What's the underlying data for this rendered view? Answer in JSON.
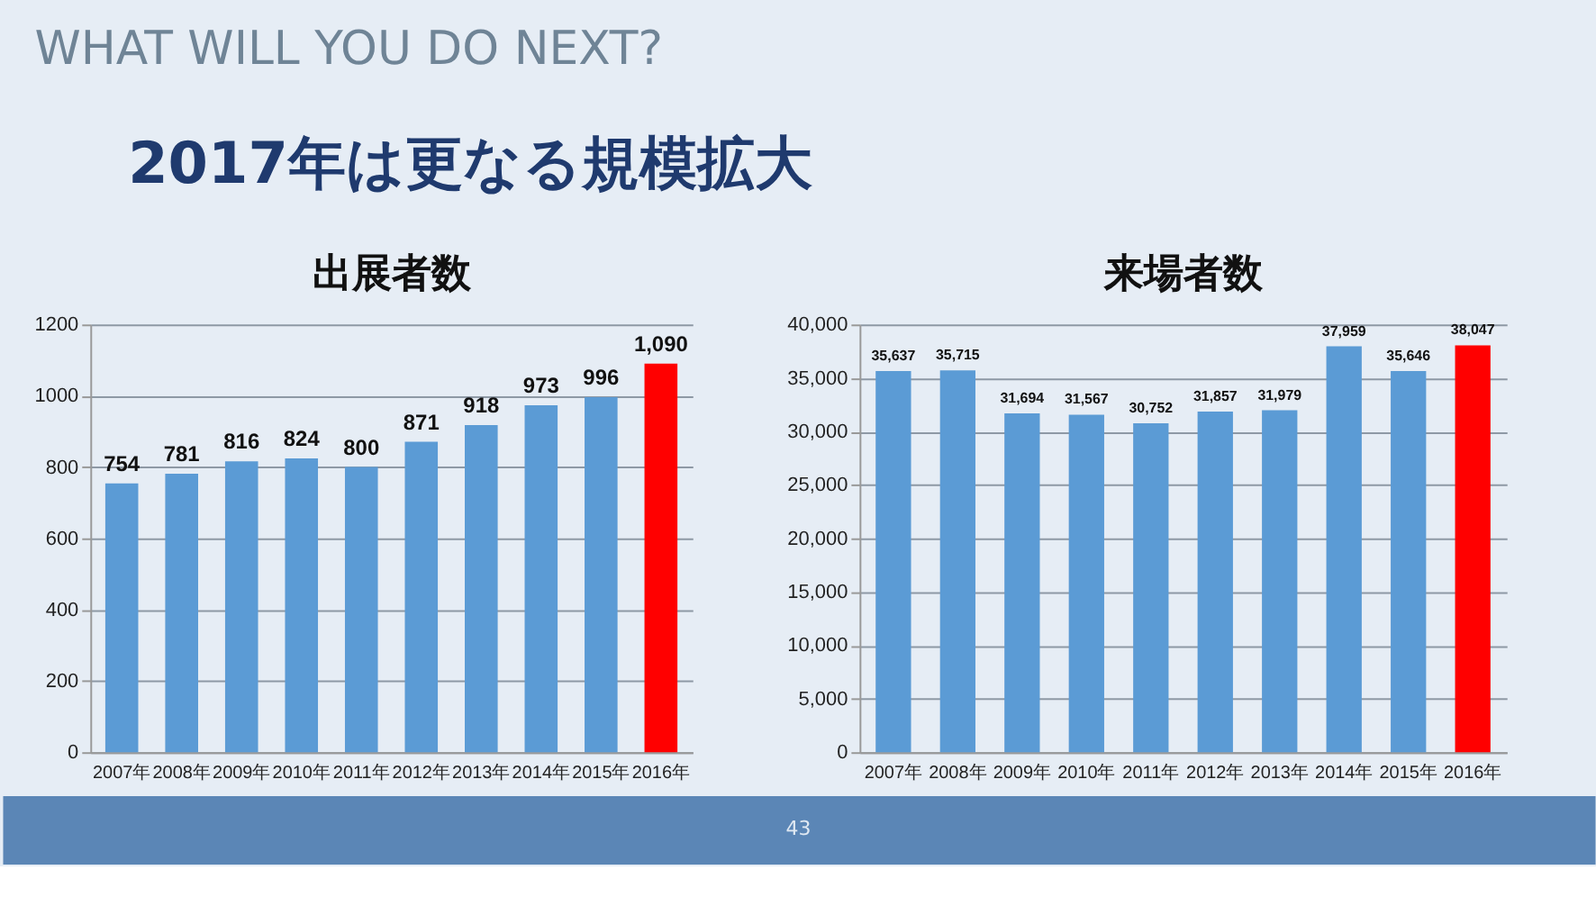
{
  "chart_data": [
    {
      "type": "other",
      "title": "2017年は更なる規模拡大",
      "annotations": [
        "WHAT WILL YOU DO NEXT?",
        "43"
      ]
    },
    {
      "type": "bar",
      "title": "出展者数",
      "categories": [
        "2007年",
        "2008年",
        "2009年",
        "2010年",
        "2011年",
        "2012年",
        "2013年",
        "2014年",
        "2015年",
        "2016年"
      ],
      "values": [
        754,
        781,
        816,
        824,
        800,
        871,
        918,
        973,
        996,
        1090
      ],
      "colors": [
        "#5b9bd5",
        "#5b9bd5",
        "#5b9bd5",
        "#5b9bd5",
        "#5b9bd5",
        "#5b9bd5",
        "#5b9bd5",
        "#5b9bd5",
        "#5b9bd5",
        "#ff0000"
      ],
      "value_labels": [
        "754",
        "781",
        "816",
        "824",
        "800",
        "871",
        "918",
        "973",
        "996",
        "1,090"
      ],
      "ylim": [
        0,
        1200
      ],
      "yticks": [
        0,
        200,
        400,
        600,
        800,
        1000,
        1200
      ],
      "grid": "y"
    },
    {
      "type": "bar",
      "title": "来場者数",
      "categories": [
        "2007年",
        "2008年",
        "2009年",
        "2010年",
        "2011年",
        "2012年",
        "2013年",
        "2014年",
        "2015年",
        "2016年"
      ],
      "values": [
        35637,
        35715,
        31694,
        31567,
        30752,
        31857,
        31979,
        37959,
        35646,
        38047
      ],
      "colors": [
        "#5b9bd5",
        "#5b9bd5",
        "#5b9bd5",
        "#5b9bd5",
        "#5b9bd5",
        "#5b9bd5",
        "#5b9bd5",
        "#5b9bd5",
        "#5b9bd5",
        "#ff0000"
      ],
      "value_labels": [
        "35,637",
        "35,715",
        "31,694",
        "31,567",
        "30,752",
        "31,857",
        "31,979",
        "37,959",
        "35,646",
        "38,047"
      ],
      "ylim": [
        0,
        40000
      ],
      "yticks": [
        0,
        {
          "value": 5000,
          "label": "5,000"
        },
        {
          "value": 10000,
          "label": "10,000"
        },
        {
          "value": 15000,
          "label": "15,000"
        },
        {
          "value": 20000,
          "label": "20,000"
        },
        {
          "value": 25000,
          "label": "25,000"
        },
        {
          "value": 30000,
          "label": "30,000"
        },
        {
          "value": 35000,
          "label": "35,000"
        },
        {
          "value": 40000,
          "label": "40,000"
        }
      ],
      "grid": "y"
    }
  ]
}
